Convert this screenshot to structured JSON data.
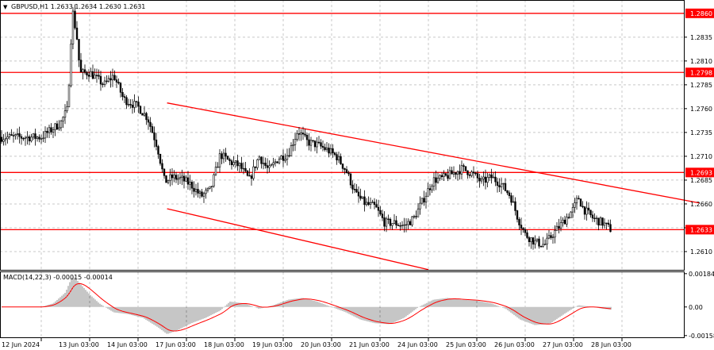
{
  "header": {
    "symbol_line": "GBPUSD,H1  1.2633 1.2634 1.2630 1.2631",
    "arrow_glyph": "▼"
  },
  "chart_data": {
    "type": "candlestick",
    "symbol": "GBPUSD",
    "timeframe": "H1",
    "ohlc_current": {
      "open": 1.2633,
      "high": 1.2634,
      "low": 1.263,
      "close": 1.2631
    },
    "ylim": [
      1.259,
      1.2874
    ],
    "y_ticks": [
      "1.2835",
      "1.2810",
      "1.2785",
      "1.2760",
      "1.2735",
      "1.2710",
      "1.2685",
      "1.2660",
      "1.2635",
      "1.2610"
    ],
    "y_tick_values": [
      1.2835,
      1.281,
      1.2785,
      1.276,
      1.2735,
      1.271,
      1.2685,
      1.266,
      1.2635,
      1.261
    ],
    "x_labels": [
      "12 Jun 2024",
      "13 Jun 03:00",
      "14 Jun 03:00",
      "17 Jun 03:00",
      "18 Jun 03:00",
      "19 Jun 03:00",
      "20 Jun 03:00",
      "21 Jun 03:00",
      "24 Jun 03:00",
      "25 Jun 03:00",
      "26 Jun 03:00",
      "27 Jun 03:00",
      "28 Jun 03:00"
    ],
    "grid": true,
    "horizontal_levels": [
      {
        "price": 1.286,
        "label": "1.2860"
      },
      {
        "price": 1.2798,
        "label": "1.2798"
      },
      {
        "price": 1.2693,
        "label": "1.2693"
      },
      {
        "price": 1.2633,
        "label": "1.2633"
      }
    ],
    "channel_lines": [
      {
        "x": [
          2.6,
          13.6
        ],
        "y": [
          1.2766,
          1.2661
        ]
      },
      {
        "x": [
          2.6,
          8.0
        ],
        "y": [
          1.2655,
          1.2591
        ]
      }
    ],
    "price_path": [
      {
        "x": 0.0,
        "y": 1.273
      },
      {
        "x": 0.4,
        "y": 1.2745
      },
      {
        "x": 0.55,
        "y": 1.276
      },
      {
        "x": 0.6,
        "y": 1.282
      },
      {
        "x": 0.65,
        "y": 1.2862
      },
      {
        "x": 0.75,
        "y": 1.283
      },
      {
        "x": 0.8,
        "y": 1.2797
      },
      {
        "x": 1.0,
        "y": 1.2798
      },
      {
        "x": 1.3,
        "y": 1.2785
      },
      {
        "x": 1.5,
        "y": 1.2795
      },
      {
        "x": 1.7,
        "y": 1.277
      },
      {
        "x": 2.0,
        "y": 1.2762
      },
      {
        "x": 2.2,
        "y": 1.275
      },
      {
        "x": 2.4,
        "y": 1.272
      },
      {
        "x": 2.55,
        "y": 1.2683
      },
      {
        "x": 2.7,
        "y": 1.2688
      },
      {
        "x": 2.9,
        "y": 1.2686
      },
      {
        "x": 3.1,
        "y": 1.268
      },
      {
        "x": 3.3,
        "y": 1.2668
      },
      {
        "x": 3.5,
        "y": 1.2675
      },
      {
        "x": 3.7,
        "y": 1.2712
      },
      {
        "x": 3.9,
        "y": 1.2704
      },
      {
        "x": 4.1,
        "y": 1.27
      },
      {
        "x": 4.3,
        "y": 1.2685
      },
      {
        "x": 4.5,
        "y": 1.271
      },
      {
        "x": 4.7,
        "y": 1.2695
      },
      {
        "x": 4.9,
        "y": 1.2708
      },
      {
        "x": 5.1,
        "y": 1.2712
      },
      {
        "x": 5.3,
        "y": 1.2737
      },
      {
        "x": 5.5,
        "y": 1.2725
      },
      {
        "x": 5.7,
        "y": 1.2722
      },
      {
        "x": 5.9,
        "y": 1.2717
      },
      {
        "x": 6.1,
        "y": 1.271
      },
      {
        "x": 6.3,
        "y": 1.2695
      },
      {
        "x": 6.5,
        "y": 1.267
      },
      {
        "x": 6.7,
        "y": 1.266
      },
      {
        "x": 6.9,
        "y": 1.2657
      },
      {
        "x": 7.1,
        "y": 1.264
      },
      {
        "x": 7.3,
        "y": 1.264
      },
      {
        "x": 7.5,
        "y": 1.2637
      },
      {
        "x": 7.7,
        "y": 1.2645
      },
      {
        "x": 7.9,
        "y": 1.2665
      },
      {
        "x": 8.1,
        "y": 1.2685
      },
      {
        "x": 8.3,
        "y": 1.2687
      },
      {
        "x": 8.5,
        "y": 1.2692
      },
      {
        "x": 8.7,
        "y": 1.2697
      },
      {
        "x": 8.9,
        "y": 1.2692
      },
      {
        "x": 9.1,
        "y": 1.2683
      },
      {
        "x": 9.3,
        "y": 1.2688
      },
      {
        "x": 9.5,
        "y": 1.2681
      },
      {
        "x": 9.7,
        "y": 1.2668
      },
      {
        "x": 9.85,
        "y": 1.2645
      },
      {
        "x": 10.0,
        "y": 1.2628
      },
      {
        "x": 10.2,
        "y": 1.262
      },
      {
        "x": 10.4,
        "y": 1.2617
      },
      {
        "x": 10.6,
        "y": 1.263
      },
      {
        "x": 10.8,
        "y": 1.2642
      },
      {
        "x": 11.0,
        "y": 1.2655
      },
      {
        "x": 11.1,
        "y": 1.2667
      },
      {
        "x": 11.2,
        "y": 1.2655
      },
      {
        "x": 11.4,
        "y": 1.2645
      },
      {
        "x": 11.6,
        "y": 1.264
      },
      {
        "x": 11.8,
        "y": 1.2632
      }
    ],
    "macd": {
      "label": "MACD(14,22,3) -0.00015 -0.00014",
      "parameters": [
        14,
        22,
        3
      ],
      "main": -0.00015,
      "signal": -0.00014,
      "y_ticks": [
        "0.00184",
        "0.00",
        "-0.00158"
      ],
      "y_tick_values": [
        0.00184,
        0.0,
        -0.00158
      ],
      "ylim": [
        -0.00172,
        0.00192
      ],
      "histogram": [
        {
          "x": 0.0,
          "y": 0.0
        },
        {
          "x": 0.25,
          "y": 0.0002
        },
        {
          "x": 0.5,
          "y": 0.0008
        },
        {
          "x": 0.65,
          "y": 0.00175
        },
        {
          "x": 0.8,
          "y": 0.0013
        },
        {
          "x": 1.0,
          "y": 0.0007
        },
        {
          "x": 1.2,
          "y": 0.0002
        },
        {
          "x": 1.5,
          "y": -0.0003
        },
        {
          "x": 1.8,
          "y": -0.0004
        },
        {
          "x": 2.1,
          "y": -0.0006
        },
        {
          "x": 2.4,
          "y": -0.0011
        },
        {
          "x": 2.6,
          "y": -0.0015
        },
        {
          "x": 2.8,
          "y": -0.0013
        },
        {
          "x": 3.1,
          "y": -0.0009
        },
        {
          "x": 3.4,
          "y": -0.0006
        },
        {
          "x": 3.7,
          "y": -0.0002
        },
        {
          "x": 3.9,
          "y": 0.0003
        },
        {
          "x": 4.2,
          "y": 0.0002
        },
        {
          "x": 4.5,
          "y": -0.0001
        },
        {
          "x": 4.8,
          "y": 0.0001
        },
        {
          "x": 5.1,
          "y": 0.0004
        },
        {
          "x": 5.4,
          "y": 0.0005
        },
        {
          "x": 5.7,
          "y": 0.0003
        },
        {
          "x": 6.0,
          "y": 0.0
        },
        {
          "x": 6.3,
          "y": -0.0003
        },
        {
          "x": 6.6,
          "y": -0.0007
        },
        {
          "x": 6.9,
          "y": -0.0009
        },
        {
          "x": 7.2,
          "y": -0.00095
        },
        {
          "x": 7.5,
          "y": -0.0006
        },
        {
          "x": 7.8,
          "y": 0.0
        },
        {
          "x": 8.1,
          "y": 0.0004
        },
        {
          "x": 8.4,
          "y": 0.0005
        },
        {
          "x": 8.7,
          "y": 0.0004
        },
        {
          "x": 9.0,
          "y": 0.00035
        },
        {
          "x": 9.3,
          "y": 0.0002
        },
        {
          "x": 9.6,
          "y": -0.0001
        },
        {
          "x": 9.9,
          "y": -0.0007
        },
        {
          "x": 10.2,
          "y": -0.001
        },
        {
          "x": 10.5,
          "y": -0.00095
        },
        {
          "x": 10.8,
          "y": -0.0004
        },
        {
          "x": 11.1,
          "y": 0.0001
        },
        {
          "x": 11.4,
          "y": 0.0
        },
        {
          "x": 11.6,
          "y": -0.0001
        },
        {
          "x": 11.8,
          "y": -0.00015
        }
      ]
    }
  },
  "colors": {
    "level_line": "#ff0000",
    "level_tag_bg": "#ff0000",
    "channel_line": "#ff0000",
    "candle": "#000000",
    "grid": "#c8c8c8",
    "macd_signal": "#ff0000",
    "macd_histogram": "#8c8c8c",
    "background": "#ffffff"
  }
}
